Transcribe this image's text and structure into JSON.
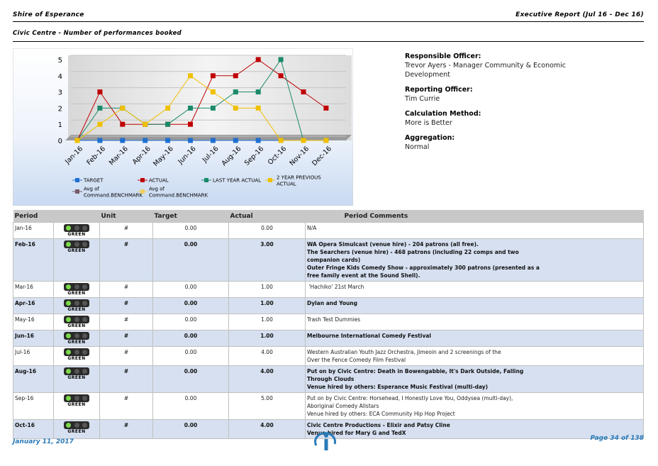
{
  "header": {
    "left": "Shire of Esperance",
    "right": "Executive Report (Jul 16 - Dec 16)",
    "subtitle": "Civic Centre - Number of performances booked"
  },
  "chart_data": {
    "type": "line",
    "categories": [
      "Jan-16",
      "Feb-16",
      "Mar-16",
      "Apr-16",
      "May-16",
      "Jun-16",
      "Jul-16",
      "Aug-16",
      "Sep-16",
      "Oct-16",
      "Nov-16",
      "Dec-16"
    ],
    "series": [
      {
        "name": "TARGET",
        "color": "#1f6fd0",
        "values": [
          0,
          0,
          0,
          0,
          0,
          0,
          0,
          0,
          0,
          0,
          0,
          0
        ]
      },
      {
        "name": "ACTUAL",
        "color": "#c00000",
        "values": [
          0,
          3,
          1,
          1,
          1,
          1,
          4,
          4,
          5,
          4,
          3,
          2
        ]
      },
      {
        "name": "LAST YEAR ACTUAL",
        "color": "#1a8a6a",
        "values": [
          0,
          2,
          2,
          1,
          1,
          2,
          2,
          3,
          3,
          5,
          0,
          0
        ]
      },
      {
        "name": "2 YEAR PREVIOUS ACTUAL",
        "color": "#f0c000",
        "values": [
          0,
          1,
          2,
          1,
          2,
          4,
          3,
          2,
          2,
          0,
          0,
          0
        ]
      }
    ],
    "legend_extra": [
      {
        "name": "Avg of Command.BENCHMARK",
        "color": "#7a5a6a"
      },
      {
        "name": "Avg of Command.BENCHMARK",
        "color": "#f0d060"
      }
    ],
    "ylim": [
      0,
      5
    ],
    "yticks": [
      0,
      1,
      2,
      3,
      4,
      5
    ],
    "grid": true
  },
  "info": [
    {
      "label": "Responsible Officer:",
      "value": "Trevor Ayers - Manager Community & Economic Development"
    },
    {
      "label": "Reporting Officer:",
      "value": "Tim Currie"
    },
    {
      "label": "Calculation Method:",
      "value": "More is Better"
    },
    {
      "label": "Aggregation:",
      "value": "Normal"
    }
  ],
  "table": {
    "headers": [
      "Period",
      "Unit",
      "Target",
      "Actual",
      "Period Comments"
    ],
    "rows": [
      {
        "period": "Jan-16",
        "status": "GREEN",
        "unit": "#",
        "target": "0.00",
        "actual": "0.00",
        "comments": [
          "N/A"
        ]
      },
      {
        "period": "Feb-16",
        "status": "GREEN",
        "unit": "#",
        "target": "0.00",
        "actual": "3.00",
        "comments": [
          "WA Opera Simulcast (venue hire) - 204 patrons (all free).",
          "The Searchers (venue hire) - 468 patrons (including 22 comps and two",
          "companion cards)",
          "Outer Fringe Kids Comedy Show - approximately 300 patrons (presented as a",
          "free family event at the Sound Shell)."
        ]
      },
      {
        "period": "Mar-16",
        "status": "GREEN",
        "unit": "#",
        "target": "0.00",
        "actual": "1.00",
        "comments": [
          " 'Hachiko' 21st March"
        ]
      },
      {
        "period": "Apr-16",
        "status": "GREEN",
        "unit": "#",
        "target": "0.00",
        "actual": "1.00",
        "comments": [
          "Dylan and Young"
        ]
      },
      {
        "period": "May-16",
        "status": "GREEN",
        "unit": "#",
        "target": "0.00",
        "actual": "1.00",
        "comments": [
          "Trash Test Dummies"
        ]
      },
      {
        "period": "Jun-16",
        "status": "GREEN",
        "unit": "#",
        "target": "0.00",
        "actual": "1.00",
        "comments": [
          "Melbourne International Comedy Festival"
        ]
      },
      {
        "period": "Jul-16",
        "status": "GREEN",
        "unit": "#",
        "target": "0.00",
        "actual": "4.00",
        "comments": [
          "Western Australian Youth Jazz Orchestra, Jimeoin and 2 screenings of the",
          "Over the Fence Comedy Film Festival"
        ]
      },
      {
        "period": "Aug-16",
        "status": "GREEN",
        "unit": "#",
        "target": "0.00",
        "actual": "4.00",
        "comments": [
          "Put on by Civic Centre: Death in Bowengabbie, It's Dark Outside, Falling",
          "Through Clouds",
          "Venue hired by others: Esperance Music Festival (multi-day)"
        ]
      },
      {
        "period": "Sep-16",
        "status": "GREEN",
        "unit": "#",
        "target": "0.00",
        "actual": "5.00",
        "comments": [
          "Put on by Civic Centre: Horsehead, I Honestly Love You, Oddysea (multi-day),",
          "Aboriginal Comedy Allstars",
          "Venue hired by others: ECA Community Hip Hop Project"
        ]
      },
      {
        "period": "Oct-16",
        "status": "GREEN",
        "unit": "#",
        "target": "0.00",
        "actual": "4.00",
        "comments": [
          "Civic Centre Productions - Elixir and Patsy Cline",
          "Venue hired for Mary G and TedX"
        ]
      }
    ]
  },
  "footer": {
    "date": "January 11, 2017",
    "page": "Page 34 of 138"
  }
}
